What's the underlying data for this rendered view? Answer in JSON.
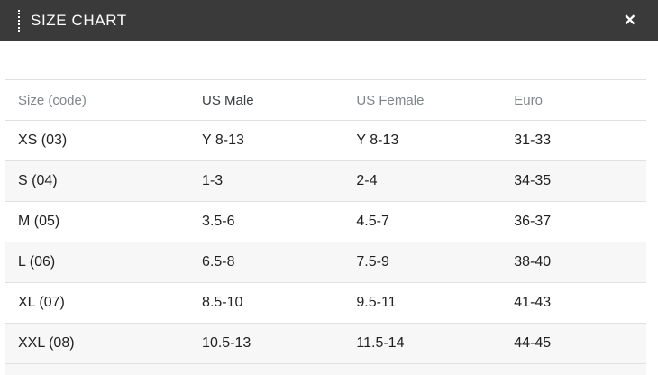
{
  "modal": {
    "title": "SIZE CHART",
    "close_icon_glyph": "✕"
  },
  "colors": {
    "header_bg": "#3a3a3a",
    "header_text": "#ffffff",
    "row_stripe": "#f7f7f8",
    "row_border": "#e0e0e0",
    "column_header_muted": "#80868b",
    "column_header_active": "#3c4043",
    "cell_text": "#212121"
  },
  "table": {
    "columns": [
      {
        "label": "Size (code)",
        "active": false
      },
      {
        "label": "US Male",
        "active": true
      },
      {
        "label": "US Female",
        "active": false
      },
      {
        "label": "Euro",
        "active": false
      }
    ],
    "rows": [
      {
        "cells": [
          "XS (03)",
          "Y 8-13",
          "Y 8-13",
          "31-33"
        ]
      },
      {
        "cells": [
          "S (04)",
          "1-3",
          "2-4",
          "34-35"
        ]
      },
      {
        "cells": [
          "M (05)",
          "3.5-6",
          "4.5-7",
          "36-37"
        ]
      },
      {
        "cells": [
          "L (06)",
          "6.5-8",
          "7.5-9",
          "38-40"
        ]
      },
      {
        "cells": [
          "XL (07)",
          "8.5-10",
          "9.5-11",
          "41-43"
        ]
      },
      {
        "cells": [
          "XXL (08)",
          "10.5-13",
          "11.5-14",
          "44-45"
        ]
      }
    ]
  }
}
